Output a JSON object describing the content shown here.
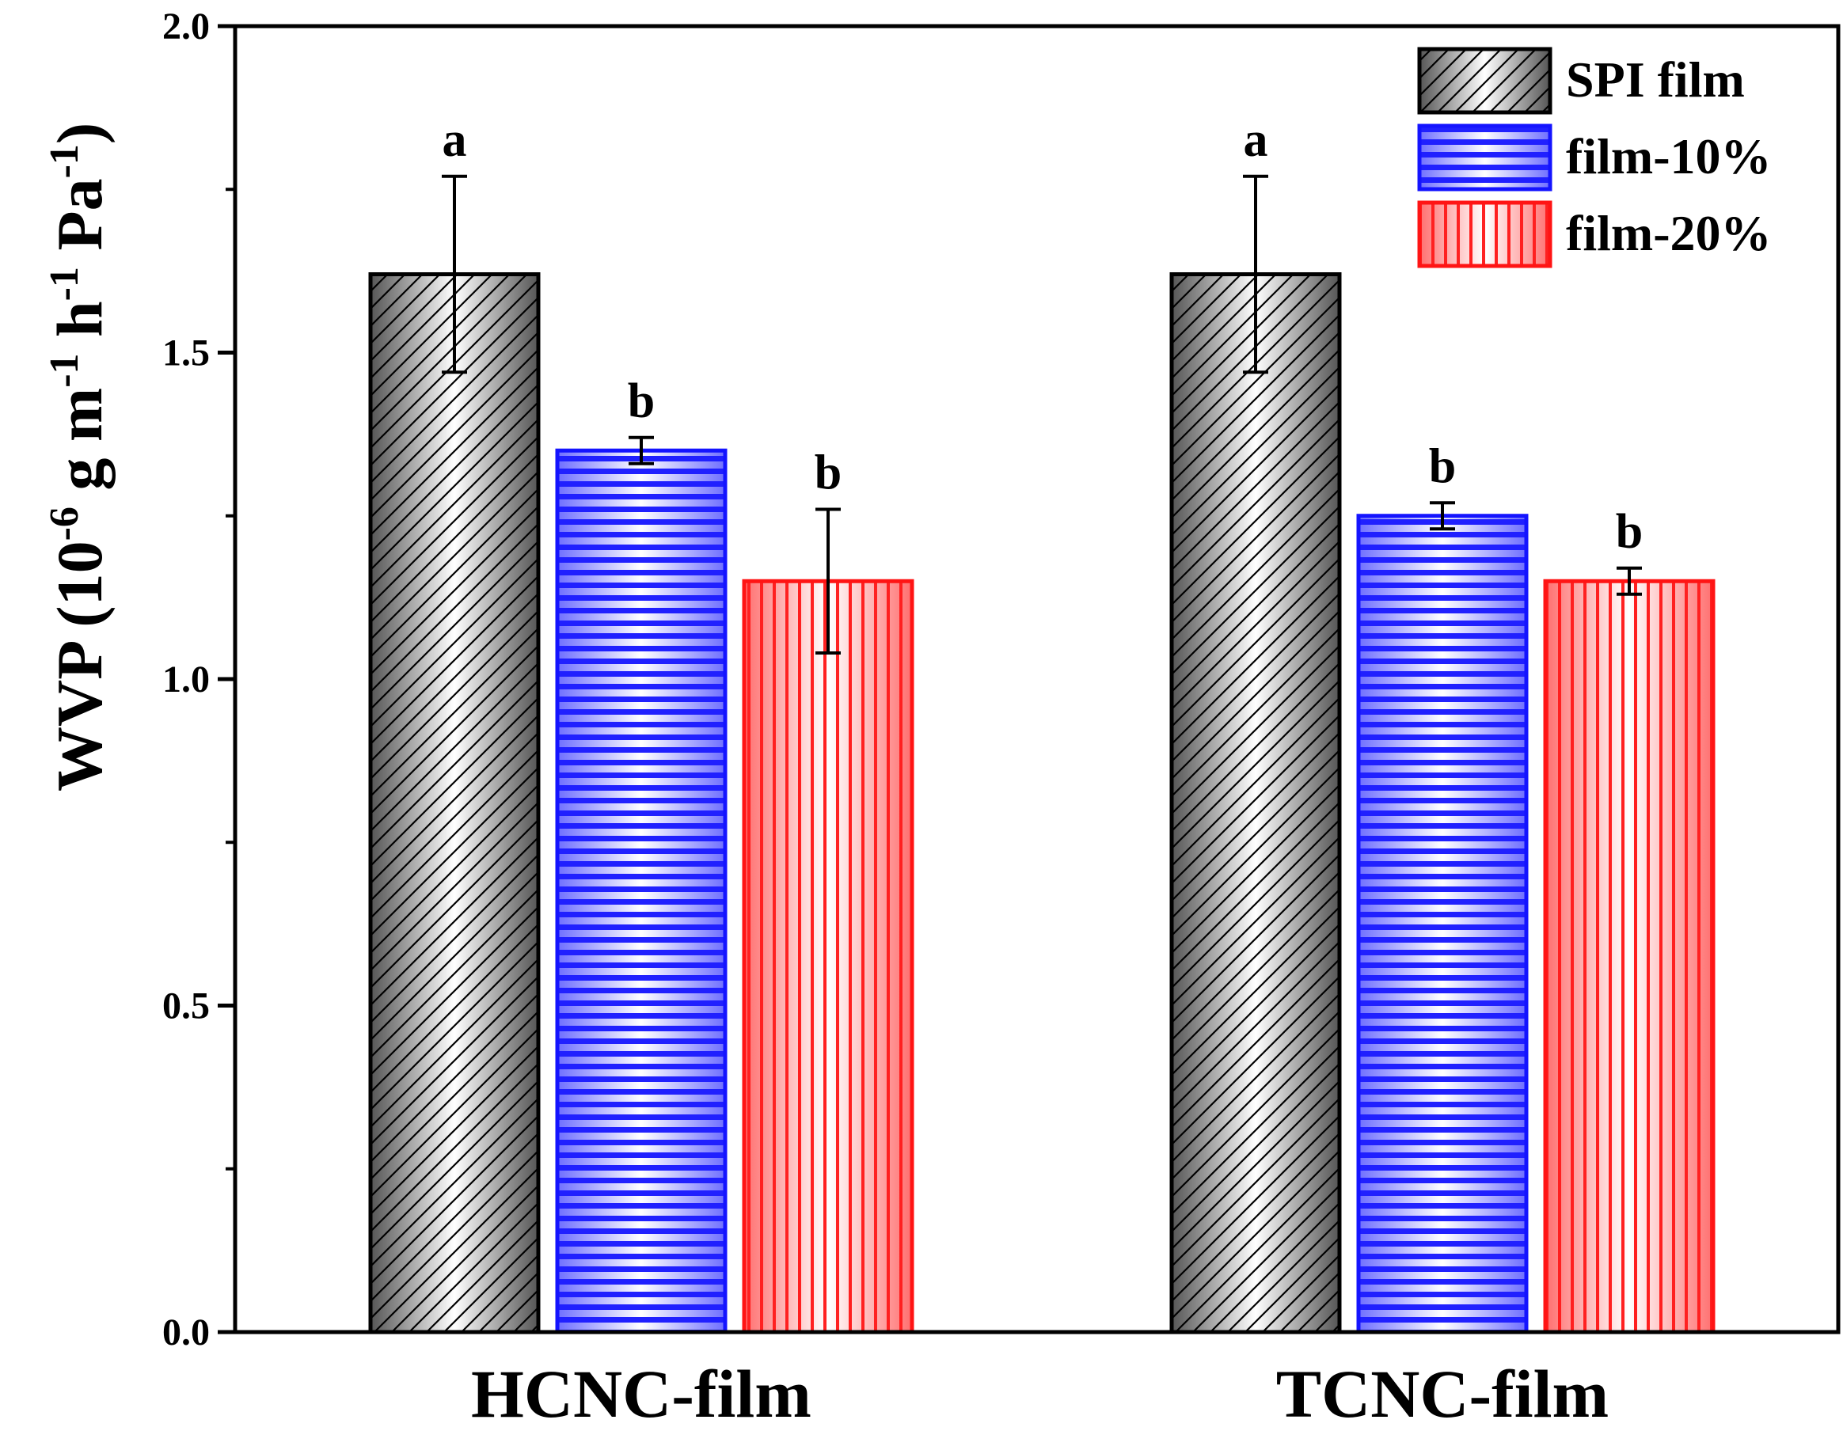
{
  "chart_data": {
    "type": "bar",
    "categories": [
      "HCNC-film",
      "TCNC-film"
    ],
    "series": [
      {
        "name": "SPI film",
        "values": [
          1.62,
          1.62
        ],
        "errors": [
          0.15,
          0.15
        ],
        "letters": [
          "a",
          "a"
        ],
        "color": "#000000",
        "pattern": "diagonal-hatch"
      },
      {
        "name": "film-10%",
        "values": [
          1.35,
          1.25
        ],
        "errors": [
          0.02,
          0.02
        ],
        "letters": [
          "b",
          "b"
        ],
        "color": "#1414ff",
        "pattern": "horizontal-stripes"
      },
      {
        "name": "film-20%",
        "values": [
          1.15,
          1.15
        ],
        "errors": [
          0.11,
          0.02
        ],
        "letters": [
          "b",
          "b"
        ],
        "color": "#ff1414",
        "pattern": "vertical-stripes"
      }
    ],
    "ylabel_parts": {
      "lead": "WVP (10",
      "exp1": "-6",
      "mid1": " g m",
      "exp2": "-1",
      "mid2": " h",
      "exp3": "-1",
      "mid3": " Pa",
      "exp4": "-1",
      "tail": ")"
    },
    "xlabel": "",
    "ylim": [
      0,
      2.0
    ],
    "yticks": [
      "0.0",
      "0.5",
      "1.0",
      "1.5",
      "2.0"
    ],
    "legend_position": "top-right",
    "grid": false
  }
}
